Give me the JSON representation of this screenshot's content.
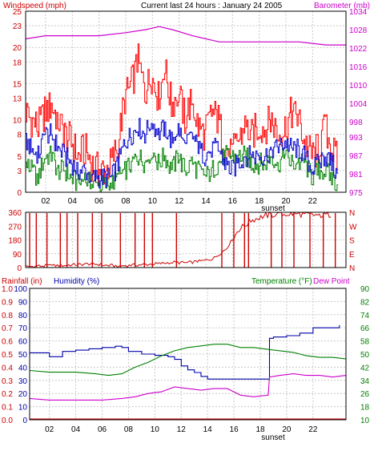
{
  "colors": {
    "background": "#ffffff",
    "plot_border": "#000000",
    "grid": "#c8c8c8",
    "windspeed": "#cc0000",
    "gust": "#ff0000",
    "average": "#0000cc",
    "low": "#008000",
    "barometer": "#cc00cc",
    "direction": "#cc0000",
    "rainfall": "#cc0000",
    "humidity": "#0000aa",
    "temperature": "#008000",
    "dew_point": "#cc00cc",
    "left_axis_red": "#cc0000",
    "left_axis_blue": "#0000aa",
    "right_axis_magenta": "#cc00cc",
    "right_axis_green": "#008000",
    "direction_axis": "#cc0000"
  },
  "chart_data": [
    {
      "id": "wind",
      "type": "line",
      "title": "Current last 24 hours : January 24 2005",
      "ylabel": "Windspeed (mph)",
      "y2label": "Barometer (mb)",
      "xticks": [
        "02",
        "04",
        "06",
        "08",
        "10",
        "12",
        "14",
        "16",
        "18",
        "20",
        "22"
      ],
      "xtick_hours": [
        2,
        4,
        6,
        8,
        10,
        12,
        14,
        16,
        18,
        20,
        22
      ],
      "xlim": [
        0.5,
        24.5
      ],
      "ylim": [
        0,
        25
      ],
      "yticks": [
        0,
        3,
        5,
        8,
        10,
        13,
        15,
        18,
        20,
        23,
        25
      ],
      "y2lim": [
        975,
        1034
      ],
      "y2ticks": [
        975,
        981,
        987,
        993,
        998,
        1004,
        1010,
        1016,
        1022,
        1028,
        1034
      ],
      "annotation": "sunset",
      "annotation_hour": 18.3,
      "grid": true,
      "series": [
        {
          "id": "gust",
          "x": [
            0.5,
            1.0,
            1.5,
            2.0,
            2.5,
            3.0,
            3.5,
            4.0,
            4.5,
            5.0,
            5.5,
            6.0,
            6.5,
            7.0,
            7.5,
            8.0,
            8.5,
            9.0,
            9.5,
            10.0,
            10.5,
            11.0,
            11.5,
            12.0,
            12.5,
            13.0,
            13.5,
            14.0,
            14.5,
            15.0,
            15.5,
            16.0,
            16.5,
            17.0,
            17.5,
            18.0,
            18.5,
            19.0,
            19.5,
            20.0,
            20.5,
            21.0,
            21.5,
            22.0,
            22.5,
            23.0,
            23.5,
            24.0
          ],
          "values": [
            11,
            10,
            9,
            11,
            12,
            10,
            8,
            7,
            5,
            6,
            4,
            3,
            3,
            4,
            7,
            13,
            15,
            18,
            14,
            16,
            13,
            17,
            12,
            14,
            10,
            13,
            9,
            8,
            11,
            10,
            6,
            5,
            7,
            9,
            8,
            9,
            9,
            10,
            8,
            9,
            11,
            10,
            7,
            5,
            6,
            9,
            6,
            4
          ]
        },
        {
          "id": "average",
          "x": [
            0.5,
            1.0,
            1.5,
            2.0,
            2.5,
            3.0,
            3.5,
            4.0,
            4.5,
            5.0,
            5.5,
            6.0,
            6.5,
            7.0,
            7.5,
            8.0,
            8.5,
            9.0,
            9.5,
            10.0,
            10.5,
            11.0,
            11.5,
            12.0,
            12.5,
            13.0,
            13.5,
            14.0,
            14.5,
            15.0,
            15.5,
            16.0,
            16.5,
            17.0,
            17.5,
            18.0,
            18.5,
            19.0,
            19.5,
            20.0,
            20.5,
            21.0,
            21.5,
            22.0,
            22.5,
            23.0,
            23.5,
            24.0
          ],
          "values": [
            7,
            6,
            5,
            8,
            8,
            6,
            5,
            4,
            3,
            3,
            2,
            2,
            2,
            2,
            4,
            7,
            8,
            9,
            8,
            10,
            8,
            9,
            7,
            9,
            6,
            8,
            6,
            5,
            6,
            6,
            4,
            3,
            4,
            5,
            5,
            5,
            5,
            6,
            6,
            7,
            6,
            6,
            5,
            3,
            4,
            5,
            4,
            2
          ]
        },
        {
          "id": "low",
          "x": [
            0.5,
            1.0,
            1.5,
            2.0,
            2.5,
            3.0,
            3.5,
            4.0,
            4.5,
            5.0,
            5.5,
            6.0,
            6.5,
            7.0,
            7.5,
            8.0,
            8.5,
            9.0,
            9.5,
            10.0,
            10.5,
            11.0,
            11.5,
            12.0,
            12.5,
            13.0,
            13.5,
            14.0,
            14.5,
            15.0,
            15.5,
            16.0,
            16.5,
            17.0,
            17.5,
            18.0,
            18.5,
            19.0,
            19.5,
            20.0,
            20.5,
            21.0,
            21.5,
            22.0,
            22.5,
            23.0,
            23.5,
            24.0
          ],
          "values": [
            4,
            3,
            2,
            5,
            5,
            3,
            3,
            2,
            1,
            2,
            1,
            1,
            1,
            1,
            2,
            3,
            4,
            5,
            4,
            6,
            4,
            5,
            3,
            5,
            3,
            4,
            3,
            2,
            3,
            4,
            5,
            5,
            5,
            5,
            4,
            4,
            4,
            5,
            4,
            5,
            4,
            4,
            4,
            2,
            3,
            3,
            2,
            1
          ]
        },
        {
          "id": "barometer",
          "axis": "y2",
          "x": [
            0.5,
            2.0,
            4.0,
            6.0,
            8.0,
            9.5,
            10.5,
            11.5,
            13.0,
            15.0,
            17.0,
            19.0,
            21.0,
            23.0,
            24.5
          ],
          "values": [
            1025,
            1026,
            1026,
            1026,
            1027,
            1028,
            1029,
            1028,
            1026,
            1024,
            1024,
            1024,
            1024,
            1023,
            1023
          ]
        }
      ]
    },
    {
      "id": "direction",
      "type": "bar",
      "xlim": [
        0.5,
        24.5
      ],
      "ylim": [
        0,
        360
      ],
      "yticks": [
        0,
        90,
        180,
        270,
        360
      ],
      "y2ticks": [
        "N",
        "E",
        "S",
        "W",
        "N"
      ],
      "grid": true,
      "series": [
        {
          "id": "direction",
          "x": [
            0.5,
            1.5,
            2.5,
            3.5,
            4.5,
            5.5,
            6.5,
            7.5,
            8.5,
            9.5,
            10.5,
            11.5,
            12.5,
            13.5,
            14.5,
            15.5,
            16.5,
            17.5,
            18.5,
            19.5,
            20.5,
            21.5,
            22.5,
            23.5
          ],
          "values": [
            5,
            10,
            12,
            15,
            20,
            25,
            15,
            10,
            15,
            20,
            25,
            35,
            30,
            40,
            55,
            120,
            250,
            310,
            340,
            345,
            350,
            345,
            340,
            345
          ],
          "spikes": [
            0.8,
            1.3,
            2.1,
            3.1,
            3.6,
            4.4,
            5.5,
            6.2,
            7.6,
            8.7,
            9.4,
            10.0,
            11.8,
            15.2,
            16.1,
            16.9,
            17.2,
            18.9,
            19.7,
            20.6,
            21.8,
            22.8,
            23.7
          ],
          "spike_value": 355
        }
      ]
    },
    {
      "id": "thermo",
      "type": "line",
      "ylabel": "Rainfall (in)",
      "ylabel2": "Humidity (%)",
      "y2label": "Temperature (°F)",
      "y2label2": "Dew Point",
      "xticks": [
        "02",
        "04",
        "06",
        "08",
        "10",
        "12",
        "14",
        "16",
        "18",
        "20",
        "22"
      ],
      "xtick_hours": [
        2,
        4,
        6,
        8,
        10,
        12,
        14,
        16,
        18,
        20,
        22
      ],
      "xlim": [
        0.5,
        24.5
      ],
      "rain_ticks": [
        "0.0",
        "0.1",
        "0.2",
        "0.3",
        "0.4",
        "0.5",
        "0.6",
        "0.7",
        "0.8",
        "0.9",
        "1.0"
      ],
      "humidity_ticks": [
        "0",
        "10",
        "20",
        "30",
        "40",
        "50",
        "60",
        "70",
        "80",
        "90",
        "100"
      ],
      "ylim": [
        0,
        100
      ],
      "y2lim": [
        10,
        90
      ],
      "y2ticks": [
        10,
        18,
        26,
        34,
        42,
        50,
        58,
        66,
        74,
        82,
        90
      ],
      "annotation": "sunset",
      "annotation_hour": 18.3,
      "grid": true,
      "series": [
        {
          "id": "humidity",
          "x": [
            0.5,
            1.0,
            2.0,
            3.0,
            4.0,
            5.0,
            6.0,
            7.0,
            7.5,
            8.0,
            9.0,
            10.0,
            10.5,
            11.0,
            11.5,
            12.0,
            12.5,
            13.0,
            13.5,
            14.0,
            15.0,
            16.0,
            17.0,
            18.0,
            18.6,
            18.7,
            19.0,
            20.0,
            21.0,
            22.0,
            23.0,
            24.0
          ],
          "values": [
            51,
            51,
            48,
            52,
            53,
            54,
            55,
            56,
            55,
            52,
            50,
            49,
            49,
            48,
            46,
            41,
            38,
            36,
            33,
            31,
            31,
            31,
            31,
            31,
            31,
            62,
            63,
            64,
            66,
            70,
            70,
            72
          ]
        },
        {
          "id": "temperature",
          "x": [
            0.5,
            2.0,
            4.0,
            5.5,
            6.5,
            7.5,
            8.5,
            9.5,
            10.5,
            11.5,
            12.5,
            13.5,
            14.5,
            15.5,
            16.5,
            17.5,
            18.5,
            19.5,
            20.5,
            21.5,
            22.5,
            23.5,
            24.5
          ],
          "values": [
            40,
            39,
            39,
            38,
            37,
            38,
            42,
            45,
            49,
            52,
            54,
            55,
            56,
            56,
            54,
            54,
            53,
            52,
            51,
            49,
            48,
            48,
            47
          ]
        },
        {
          "id": "dew_point",
          "x": [
            0.5,
            2.0,
            4.0,
            6.0,
            7.5,
            8.5,
            9.5,
            10.5,
            11.5,
            12.5,
            13.5,
            14.5,
            15.5,
            16.5,
            17.5,
            18.6,
            18.7,
            19.5,
            20.5,
            21.5,
            22.5,
            23.5,
            24.5
          ],
          "values": [
            23,
            22,
            22,
            22,
            23,
            24,
            26,
            27,
            30,
            29,
            28,
            29,
            29,
            25,
            24,
            25,
            36,
            37,
            38,
            37,
            37,
            36,
            37
          ]
        }
      ]
    }
  ]
}
